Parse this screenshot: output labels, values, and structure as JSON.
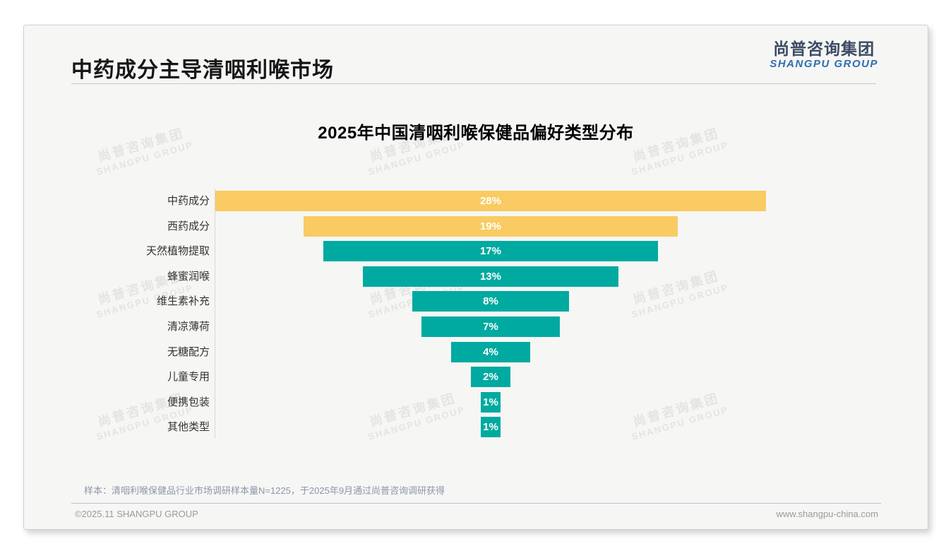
{
  "header": {
    "title": "中药成分主导清咽利喉市场"
  },
  "logo": {
    "cn": "尚普咨询集团",
    "en": "SHANGPU GROUP"
  },
  "watermark": {
    "cn": "尚普咨询集团",
    "en": "SHANGPU GROUP"
  },
  "chart_data": {
    "type": "bar",
    "variant": "horizontal-centered-funnel",
    "title": "2025年中国清咽利喉保健品偏好类型分布",
    "unit": "%",
    "categories": [
      "中药成分",
      "西药成分",
      "天然植物提取",
      "蜂蜜润喉",
      "维生素补充",
      "清凉薄荷",
      "无糖配方",
      "儿童专用",
      "便携包装",
      "其他类型"
    ],
    "values": [
      28,
      19,
      17,
      13,
      8,
      7,
      4,
      2,
      1,
      1
    ],
    "value_labels": [
      "28%",
      "19%",
      "17%",
      "13%",
      "8%",
      "7%",
      "4%",
      "2%",
      "1%",
      "1%"
    ],
    "bar_colors": [
      "#F9CB62",
      "#F9CB62",
      "#00AAA0",
      "#00AAA0",
      "#00AAA0",
      "#00AAA0",
      "#00AAA0",
      "#00AAA0",
      "#00AAA0",
      "#00AAA0"
    ],
    "accent_yellow": "#F9CB62",
    "accent_teal": "#00AAA0",
    "xlim": [
      0,
      28
    ],
    "grid": false,
    "legend": false
  },
  "footer": {
    "note": "样本：清咽利喉保健品行业市场调研样本量N=1225，于2025年9月通过尚普咨询调研获得",
    "copyright": "©2025.11 SHANGPU GROUP",
    "website": "www.shangpu-china.com"
  }
}
